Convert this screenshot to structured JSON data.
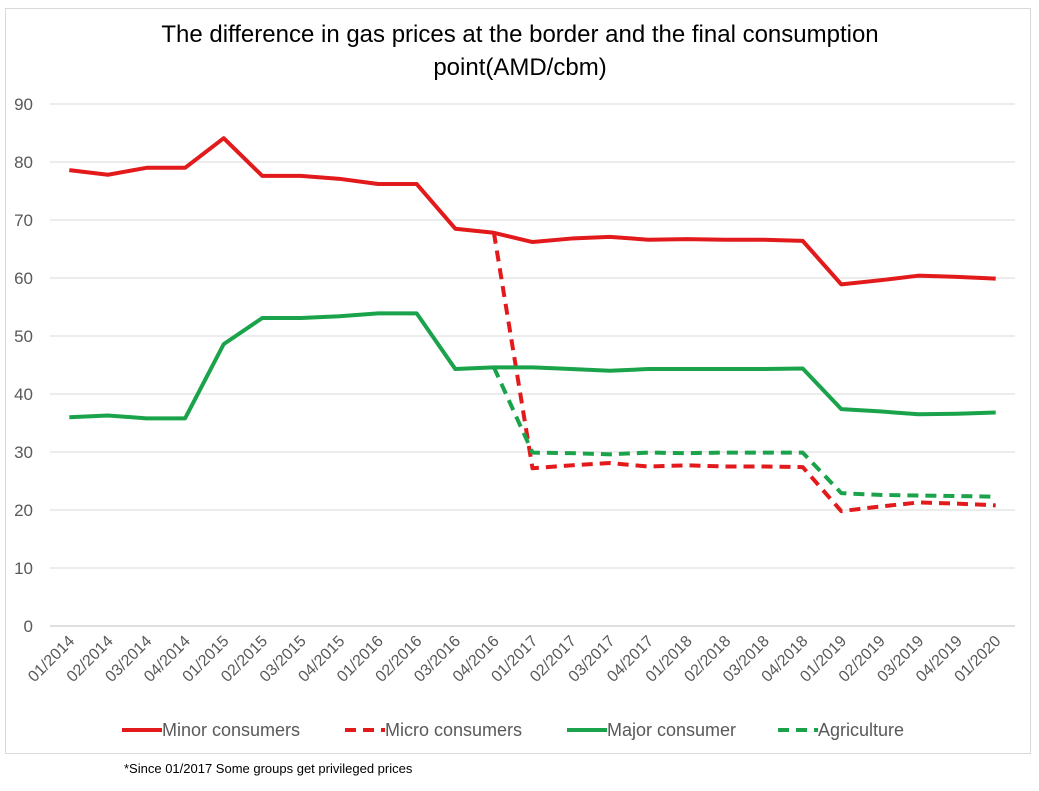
{
  "chart_data": {
    "type": "line",
    "title": "The difference in gas prices at the border and the final consumption point(AMD/cbm)",
    "xlabel": "",
    "ylabel": "",
    "ylim": [
      0,
      90
    ],
    "yticks": [
      0,
      10,
      20,
      30,
      40,
      50,
      60,
      70,
      80,
      90
    ],
    "grid": true,
    "legend_position": "bottom",
    "categories": [
      "01/2014",
      "02/2014",
      "03/2014",
      "04/2014",
      "01/2015",
      "02/2015",
      "03/2015",
      "04/2015",
      "01/2016",
      "02/2016",
      "03/2016",
      "04/2016",
      "01/2017",
      "02/2017",
      "03/2017",
      "04/2017",
      "01/2018",
      "02/2018",
      "03/2018",
      "04/2018",
      "01/2019",
      "02/2019",
      "03/2019",
      "04/2019",
      "01/2020"
    ],
    "series": [
      {
        "name": "Minor consumers",
        "color": "#e31a1c",
        "dash": false,
        "values": [
          78.6,
          77.8,
          79.0,
          79.0,
          84.1,
          77.6,
          77.6,
          77.1,
          76.2,
          76.2,
          68.5,
          67.8,
          66.2,
          66.8,
          67.1,
          66.6,
          66.7,
          66.6,
          66.6,
          66.4,
          58.9,
          59.6,
          60.4,
          60.2,
          59.9
        ]
      },
      {
        "name": "Micro consumers",
        "color": "#e31a1c",
        "dash": true,
        "values": [
          null,
          null,
          null,
          null,
          null,
          null,
          null,
          null,
          null,
          null,
          null,
          67.8,
          27.2,
          27.7,
          28.1,
          27.5,
          27.7,
          27.5,
          27.5,
          27.4,
          19.8,
          20.6,
          21.3,
          21.1,
          20.8
        ]
      },
      {
        "name": "Major consumer",
        "color": "#1aa34a",
        "dash": false,
        "values": [
          36.0,
          36.3,
          35.8,
          35.8,
          48.6,
          53.1,
          53.1,
          53.4,
          53.9,
          53.9,
          44.3,
          44.6,
          44.6,
          44.3,
          44.0,
          44.3,
          44.3,
          44.3,
          44.3,
          44.4,
          37.4,
          37.0,
          36.5,
          36.6,
          36.8
        ]
      },
      {
        "name": "Agriculture",
        "color": "#1aa34a",
        "dash": true,
        "values": [
          null,
          null,
          null,
          null,
          null,
          null,
          null,
          null,
          null,
          null,
          null,
          44.6,
          29.9,
          29.8,
          29.6,
          29.9,
          29.8,
          29.9,
          29.9,
          29.9,
          22.9,
          22.6,
          22.5,
          22.4,
          22.3
        ]
      }
    ]
  },
  "footnote": "*Since 01/2017 Some groups get privileged prices"
}
